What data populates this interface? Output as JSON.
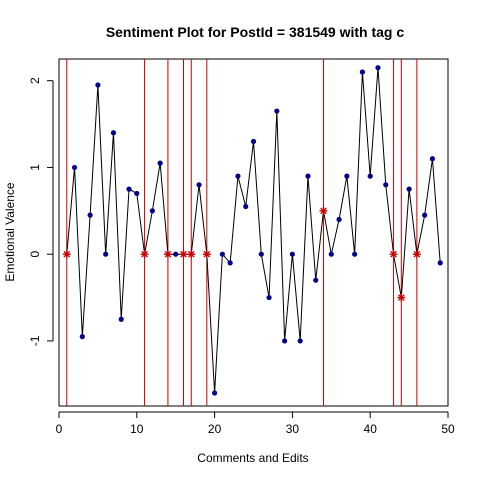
{
  "chart_data": {
    "type": "line",
    "title": "Sentiment Plot for PostId =  381549  with tag  c",
    "xlabel": "Comments and Edits",
    "ylabel": "Emotional Valence",
    "xlim": [
      0,
      50
    ],
    "ylim": [
      -1.75,
      2.25
    ],
    "xticks": [
      0,
      10,
      20,
      30,
      40,
      50
    ],
    "yticks": [
      -1,
      0,
      1,
      2
    ],
    "grid": false,
    "line_color": "#000000",
    "point_color": "#00008b",
    "edit_color": "#cc0000",
    "vline_color": "#cc0000",
    "x": [
      1,
      2,
      3,
      4,
      5,
      6,
      7,
      8,
      9,
      10,
      11,
      12,
      13,
      14,
      15,
      16,
      17,
      18,
      19,
      20,
      21,
      22,
      23,
      24,
      25,
      26,
      27,
      28,
      29,
      30,
      31,
      32,
      33,
      34,
      35,
      36,
      37,
      38,
      39,
      40,
      41,
      42,
      43,
      44,
      45,
      46,
      47,
      48,
      49
    ],
    "y": [
      0,
      1,
      -0.95,
      0.45,
      1.95,
      0,
      1.4,
      -0.75,
      0.75,
      0.7,
      0,
      0.5,
      1.05,
      0,
      0,
      0,
      0,
      0.8,
      0,
      -1.6,
      0,
      -0.1,
      0.9,
      0.55,
      1.3,
      0,
      -0.5,
      1.65,
      -1,
      0,
      -1,
      0.9,
      -0.3,
      0.5,
      0,
      0.4,
      0.9,
      0,
      2.1,
      0.9,
      2.15,
      0.8,
      0,
      -0.5,
      0.75,
      0,
      0.45,
      1.1,
      -0.1
    ],
    "edit_markers": [
      1,
      11,
      14,
      16,
      17,
      19,
      34,
      43,
      44,
      46
    ],
    "vlines": [
      1,
      11,
      14,
      16,
      17,
      19,
      34,
      43,
      44,
      46
    ]
  }
}
